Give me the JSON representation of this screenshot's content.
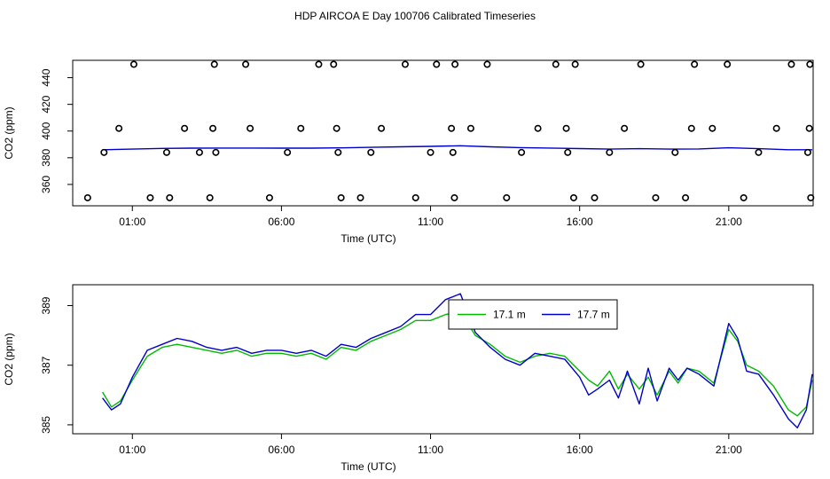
{
  "title": "HDP AIRCOA E  Day 100706  Calibrated Timeseries",
  "chart_data": [
    {
      "type": "line",
      "xlabel": "Time (UTC)",
      "ylabel": "CO2 (ppm)",
      "xlim": [
        -1.0,
        23.83
      ],
      "ylim": [
        344,
        453
      ],
      "x_ticks": [
        1,
        6,
        11,
        16,
        21
      ],
      "x_tick_labels": [
        "01:00",
        "06:00",
        "11:00",
        "16:00",
        "21:00"
      ],
      "y_ticks": [
        360,
        380,
        400,
        420,
        440
      ],
      "y_tick_labels": [
        "360",
        "380",
        "400",
        "420",
        "440"
      ],
      "series": [
        {
          "color": "#0000cc",
          "line": true,
          "x": [
            0.0,
            1.0,
            2.0,
            3.0,
            4.0,
            5.0,
            6.0,
            7.0,
            8.0,
            9.0,
            10.0,
            11.0,
            12.0,
            13.0,
            14.0,
            15.0,
            16.0,
            17.0,
            18.0,
            19.0,
            20.0,
            21.0,
            22.0,
            23.0,
            23.8
          ],
          "y": [
            386,
            386.5,
            387,
            387.2,
            387.3,
            387.3,
            387.2,
            387.2,
            387.4,
            387.8,
            388.2,
            388.5,
            389,
            388.2,
            387.6,
            387.3,
            386.9,
            386.5,
            386.8,
            386.5,
            386.6,
            387.5,
            386.8,
            386,
            386
          ]
        },
        {
          "color": "#000000",
          "marker": "circle",
          "x": [
            -0.5,
            0.05,
            0.55,
            1.05,
            1.6,
            2.15,
            2.25,
            2.75,
            3.25,
            3.6,
            3.7,
            3.75,
            3.8,
            4.8,
            4.95,
            5.6,
            6.2,
            6.65,
            7.25,
            7.75,
            7.85,
            7.9,
            8.0,
            8.65,
            9.0,
            9.35,
            10.15,
            10.5,
            11.0,
            11.2,
            11.7,
            11.75,
            11.8,
            11.82,
            12.35,
            12.9,
            13.55,
            14.05,
            14.6,
            15.2,
            15.55,
            15.6,
            15.8,
            15.85,
            16.5,
            17.0,
            17.5,
            18.05,
            18.55,
            19.2,
            19.55,
            19.75,
            19.85,
            20.45,
            20.95,
            21.5,
            22.0,
            22.6,
            23.1,
            23.65,
            23.7,
            23.72,
            23.75
          ],
          "y": [
            350,
            384,
            402,
            450,
            350,
            384,
            350,
            402,
            384,
            350,
            402,
            450,
            384,
            450,
            402,
            350,
            384,
            402,
            450,
            450,
            402,
            384,
            350,
            350,
            384,
            402,
            450,
            350,
            384,
            450,
            402,
            384,
            350,
            450,
            402,
            450,
            350,
            384,
            402,
            450,
            402,
            384,
            350,
            450,
            350,
            384,
            402,
            450,
            350,
            384,
            350,
            402,
            450,
            402,
            450,
            350,
            384,
            402,
            450,
            384,
            402,
            450,
            350
          ]
        }
      ]
    },
    {
      "type": "line",
      "xlabel": "Time (UTC)",
      "ylabel": "CO2 (ppm)",
      "xlim": [
        -1.0,
        23.83
      ],
      "ylim": [
        384.7,
        389.7
      ],
      "x_ticks": [
        1,
        6,
        11,
        16,
        21
      ],
      "x_tick_labels": [
        "01:00",
        "06:00",
        "11:00",
        "16:00",
        "21:00"
      ],
      "y_ticks": [
        385,
        387,
        389
      ],
      "y_tick_labels": [
        "385",
        "387",
        "389"
      ],
      "legend": "top-center",
      "series": [
        {
          "name": "17.1 m",
          "color": "#00bb00",
          "x": [
            0.0,
            0.3,
            0.6,
            1.0,
            1.5,
            2.0,
            2.5,
            3.0,
            3.5,
            4.0,
            4.5,
            5.0,
            5.5,
            6.0,
            6.5,
            7.0,
            7.5,
            8.0,
            8.5,
            9.0,
            9.5,
            10.0,
            10.5,
            11.0,
            11.5,
            12.0,
            12.5,
            13.0,
            13.5,
            14.0,
            14.5,
            15.0,
            15.5,
            16.0,
            16.3,
            16.6,
            17.0,
            17.3,
            17.6,
            18.0,
            18.3,
            18.6,
            19.0,
            19.3,
            19.6,
            20.0,
            20.5,
            21.0,
            21.3,
            21.6,
            22.0,
            22.5,
            23.0,
            23.3,
            23.6,
            23.8
          ],
          "y": [
            386.1,
            385.6,
            385.8,
            386.5,
            387.3,
            387.6,
            387.7,
            387.6,
            387.5,
            387.4,
            387.5,
            387.3,
            387.4,
            387.4,
            387.3,
            387.4,
            387.2,
            387.6,
            387.5,
            387.8,
            388.0,
            388.2,
            388.5,
            388.5,
            388.7,
            388.8,
            388.0,
            387.7,
            387.3,
            387.1,
            387.3,
            387.4,
            387.3,
            386.8,
            386.5,
            386.3,
            386.8,
            386.2,
            386.7,
            386.2,
            386.6,
            386.0,
            386.8,
            386.4,
            386.9,
            386.8,
            386.4,
            388.2,
            387.8,
            387.0,
            386.8,
            386.3,
            385.5,
            385.3,
            385.6,
            386.5
          ]
        },
        {
          "name": "17.7 m",
          "color": "#0000cc",
          "x": [
            0.0,
            0.3,
            0.6,
            1.0,
            1.5,
            2.0,
            2.5,
            3.0,
            3.5,
            4.0,
            4.5,
            5.0,
            5.5,
            6.0,
            6.5,
            7.0,
            7.5,
            8.0,
            8.5,
            9.0,
            9.5,
            10.0,
            10.5,
            11.0,
            11.5,
            12.0,
            12.5,
            13.0,
            13.5,
            14.0,
            14.5,
            15.0,
            15.5,
            16.0,
            16.3,
            16.6,
            17.0,
            17.3,
            17.6,
            18.0,
            18.3,
            18.6,
            19.0,
            19.3,
            19.6,
            20.0,
            20.5,
            21.0,
            21.3,
            21.6,
            22.0,
            22.5,
            23.0,
            23.3,
            23.6,
            23.8
          ],
          "y": [
            385.9,
            385.5,
            385.7,
            386.6,
            387.5,
            387.7,
            387.9,
            387.8,
            387.6,
            387.5,
            387.6,
            387.4,
            387.5,
            387.5,
            387.4,
            387.5,
            387.3,
            387.7,
            387.6,
            387.9,
            388.1,
            388.3,
            388.7,
            388.7,
            389.2,
            389.4,
            388.1,
            387.6,
            387.2,
            387.0,
            387.4,
            387.3,
            387.2,
            386.6,
            386.0,
            386.2,
            386.5,
            385.9,
            386.8,
            385.7,
            386.9,
            385.8,
            386.9,
            386.5,
            386.9,
            386.7,
            386.3,
            388.4,
            387.9,
            386.8,
            386.7,
            386.0,
            385.2,
            384.9,
            385.5,
            386.7
          ]
        }
      ]
    }
  ]
}
